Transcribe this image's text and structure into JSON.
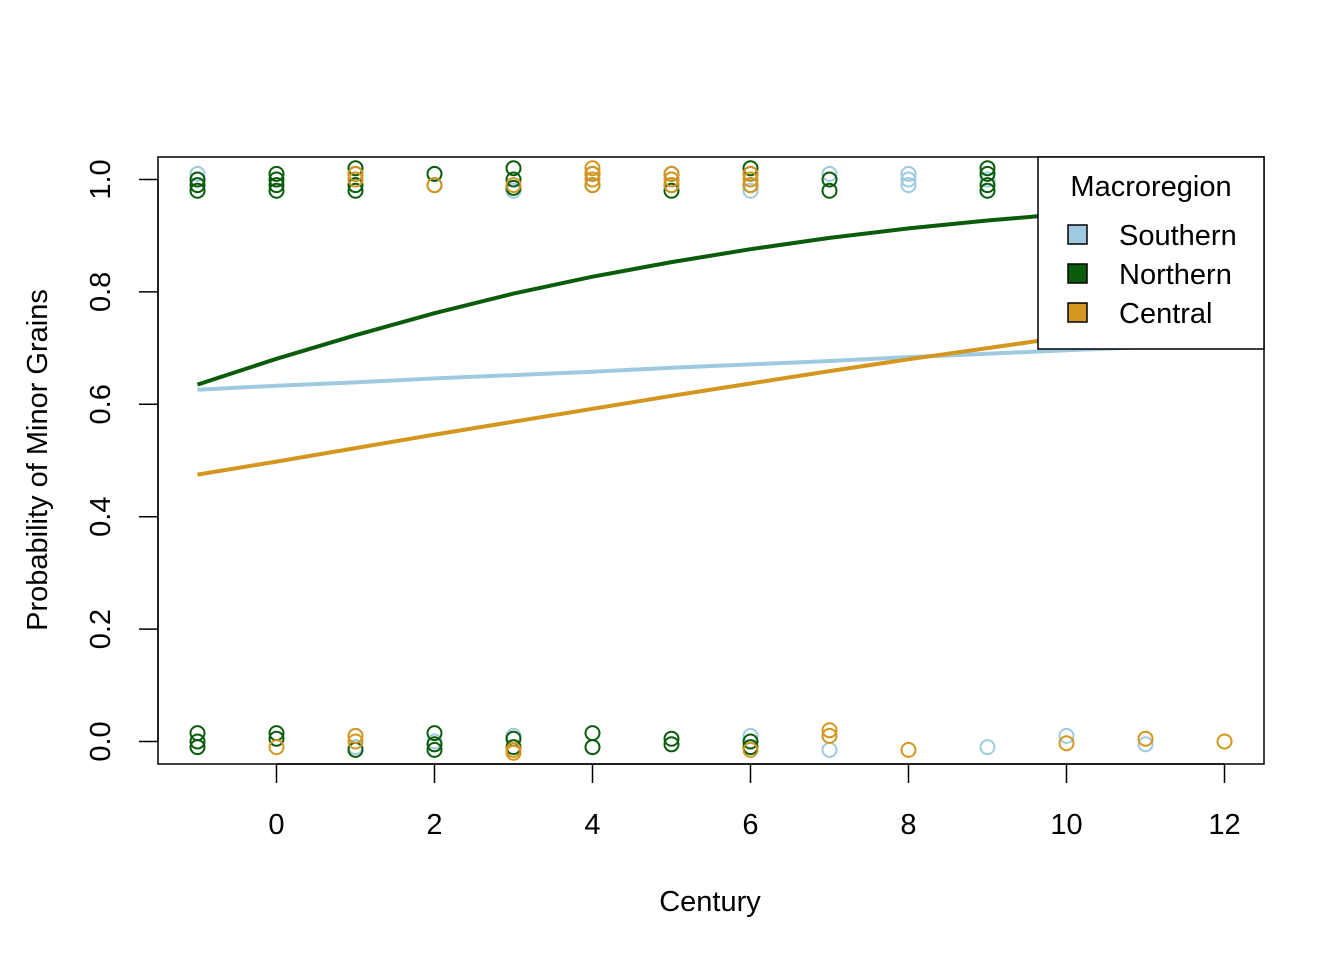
{
  "chart_data": {
    "type": "scatter",
    "xlabel": "Century",
    "ylabel": "Probability of Minor Grains",
    "xlim": [
      -1.5,
      12.5
    ],
    "ylim": [
      -0.04,
      1.04
    ],
    "x_ticks": [
      0,
      2,
      4,
      6,
      8,
      10,
      12
    ],
    "y_ticks": [
      0.0,
      0.2,
      0.4,
      0.6,
      0.8,
      1.0
    ],
    "x_tick_labels": [
      "0",
      "2",
      "4",
      "6",
      "8",
      "10",
      "12"
    ],
    "y_tick_labels": [
      "0.0",
      "0.2",
      "0.4",
      "0.6",
      "0.8",
      "1.0"
    ],
    "grid": false,
    "legend": {
      "title": "Macroregion",
      "position": "top-right",
      "entries": [
        "Southern",
        "Northern",
        "Central"
      ]
    },
    "series": [
      {
        "name": "Southern",
        "color": "#9ecae1",
        "line": {
          "x": [
            -1,
            0,
            1,
            2,
            3,
            4,
            5,
            6,
            7,
            8,
            9,
            10,
            11,
            12
          ],
          "y": [
            0.626,
            0.633,
            0.639,
            0.646,
            0.652,
            0.658,
            0.665,
            0.671,
            0.677,
            0.684,
            0.69,
            0.696,
            0.702,
            0.708
          ]
        },
        "points": [
          {
            "x": -1,
            "y": 1.0
          },
          {
            "x": -1,
            "y": 0.99
          },
          {
            "x": -1,
            "y": 1.01
          },
          {
            "x": -1,
            "y": 0.0
          },
          {
            "x": -1,
            "y": -0.01
          },
          {
            "x": 0,
            "y": 1.0
          },
          {
            "x": 1,
            "y": 1.0
          },
          {
            "x": 1,
            "y": 0.99
          },
          {
            "x": 1,
            "y": 0.01
          },
          {
            "x": 1,
            "y": -0.01
          },
          {
            "x": 2,
            "y": 1.01
          },
          {
            "x": 2,
            "y": 0.0
          },
          {
            "x": 3,
            "y": 0.98
          },
          {
            "x": 3,
            "y": 0.01
          },
          {
            "x": 4,
            "y": 1.0
          },
          {
            "x": 4,
            "y": -0.01
          },
          {
            "x": 5,
            "y": 1.0
          },
          {
            "x": 6,
            "y": 0.98
          },
          {
            "x": 6,
            "y": 0.01
          },
          {
            "x": 7,
            "y": 1.01
          },
          {
            "x": 7,
            "y": 1.0
          },
          {
            "x": 7,
            "y": -0.015
          },
          {
            "x": 8,
            "y": 1.01
          },
          {
            "x": 8,
            "y": 1.0
          },
          {
            "x": 8,
            "y": 0.99
          },
          {
            "x": 9,
            "y": 1.0
          },
          {
            "x": 9,
            "y": -0.01
          },
          {
            "x": 10,
            "y": 0.01
          },
          {
            "x": 11,
            "y": -0.005
          }
        ]
      },
      {
        "name": "Northern",
        "color": "#0a5c0a",
        "line": {
          "x": [
            -1,
            0,
            1,
            2,
            3,
            4,
            5,
            6,
            7,
            8,
            9,
            10,
            11,
            12
          ],
          "y": [
            0.635,
            0.681,
            0.723,
            0.762,
            0.797,
            0.827,
            0.853,
            0.876,
            0.896,
            0.913,
            0.927,
            0.939,
            0.949,
            0.957
          ]
        },
        "points": [
          {
            "x": -1,
            "y": 0.98
          },
          {
            "x": -1,
            "y": 0.99
          },
          {
            "x": -1,
            "y": 1.0
          },
          {
            "x": -1,
            "y": 0.015
          },
          {
            "x": -1,
            "y": 0.0
          },
          {
            "x": -1,
            "y": -0.01
          },
          {
            "x": 0,
            "y": 1.01
          },
          {
            "x": 0,
            "y": 1.0
          },
          {
            "x": 0,
            "y": 0.99
          },
          {
            "x": 0,
            "y": 0.98
          },
          {
            "x": 0,
            "y": 0.015
          },
          {
            "x": 0,
            "y": 0.005
          },
          {
            "x": 1,
            "y": 1.02
          },
          {
            "x": 1,
            "y": 1.01
          },
          {
            "x": 1,
            "y": 0.99
          },
          {
            "x": 1,
            "y": 0.98
          },
          {
            "x": 1,
            "y": -0.015
          },
          {
            "x": 2,
            "y": 1.01
          },
          {
            "x": 2,
            "y": 0.99
          },
          {
            "x": 2,
            "y": 0.015
          },
          {
            "x": 2,
            "y": -0.005
          },
          {
            "x": 2,
            "y": -0.015
          },
          {
            "x": 3,
            "y": 1.02
          },
          {
            "x": 3,
            "y": 1.0
          },
          {
            "x": 3,
            "y": 0.985
          },
          {
            "x": 3,
            "y": 0.005
          },
          {
            "x": 3,
            "y": -0.01
          },
          {
            "x": 4,
            "y": 1.01
          },
          {
            "x": 4,
            "y": 0.99
          },
          {
            "x": 4,
            "y": 0.015
          },
          {
            "x": 4,
            "y": -0.01
          },
          {
            "x": 5,
            "y": 1.01
          },
          {
            "x": 5,
            "y": 0.99
          },
          {
            "x": 5,
            "y": 0.98
          },
          {
            "x": 5,
            "y": 0.005
          },
          {
            "x": 5,
            "y": -0.005
          },
          {
            "x": 6,
            "y": 1.02
          },
          {
            "x": 6,
            "y": 1.01
          },
          {
            "x": 6,
            "y": 0.99
          },
          {
            "x": 6,
            "y": 0.0
          },
          {
            "x": 6,
            "y": -0.01
          },
          {
            "x": 7,
            "y": 1.0
          },
          {
            "x": 7,
            "y": 0.98
          },
          {
            "x": 9,
            "y": 1.02
          },
          {
            "x": 9,
            "y": 1.01
          },
          {
            "x": 9,
            "y": 0.99
          },
          {
            "x": 9,
            "y": 0.98
          }
        ]
      },
      {
        "name": "Central",
        "color": "#d4961e",
        "line": {
          "x": [
            -1,
            0,
            1,
            2,
            3,
            4,
            5,
            6,
            7,
            8,
            9,
            10,
            11,
            12
          ],
          "y": [
            0.475,
            0.498,
            0.522,
            0.546,
            0.569,
            0.592,
            0.615,
            0.637,
            0.659,
            0.68,
            0.7,
            0.72,
            0.739,
            0.757
          ]
        },
        "points": [
          {
            "x": 0,
            "y": -0.01
          },
          {
            "x": 1,
            "y": 1.01
          },
          {
            "x": 1,
            "y": 1.0
          },
          {
            "x": 1,
            "y": 0.0
          },
          {
            "x": 1,
            "y": 0.01
          },
          {
            "x": 2,
            "y": 0.99
          },
          {
            "x": 3,
            "y": 0.99
          },
          {
            "x": 3,
            "y": -0.015
          },
          {
            "x": 3,
            "y": -0.02
          },
          {
            "x": 4,
            "y": 1.02
          },
          {
            "x": 4,
            "y": 1.01
          },
          {
            "x": 4,
            "y": 1.0
          },
          {
            "x": 4,
            "y": 0.99
          },
          {
            "x": 5,
            "y": 1.01
          },
          {
            "x": 5,
            "y": 1.0
          },
          {
            "x": 5,
            "y": 0.99
          },
          {
            "x": 6,
            "y": 1.01
          },
          {
            "x": 6,
            "y": 1.0
          },
          {
            "x": 6,
            "y": 0.99
          },
          {
            "x": 6,
            "y": -0.015
          },
          {
            "x": 7,
            "y": 0.02
          },
          {
            "x": 7,
            "y": 0.01
          },
          {
            "x": 8,
            "y": -0.015
          },
          {
            "x": 10,
            "y": -0.003
          },
          {
            "x": 11,
            "y": 0.005
          },
          {
            "x": 12,
            "y": 0.0
          }
        ]
      }
    ]
  }
}
